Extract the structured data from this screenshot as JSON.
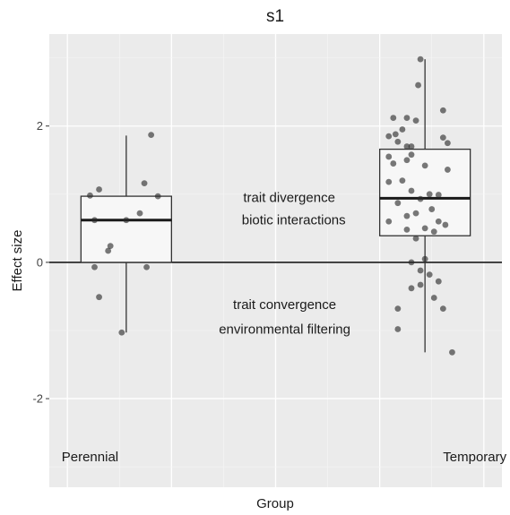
{
  "chart_data": {
    "type": "box",
    "title": "s1",
    "xlabel": "Group",
    "ylabel": "Effect size",
    "ylim": [
      -3.3,
      3.35
    ],
    "yticks": [
      -2,
      0,
      2
    ],
    "ytick_labels": [
      "-2",
      "0",
      "2"
    ],
    "reference_line_y": 0,
    "grid": true,
    "legend": "none",
    "annotations": [
      {
        "text": "trait divergence",
        "x": 0.53,
        "y": 0.95
      },
      {
        "text": "biotic interactions",
        "x": 0.54,
        "y": 0.62
      },
      {
        "text": "trait convergence",
        "x": 0.52,
        "y": -0.62
      },
      {
        "text": "environmental filtering",
        "x": 0.52,
        "y": -0.98
      }
    ],
    "group_labels": [
      {
        "text": "Perennial",
        "x": 0.09,
        "y": -2.85
      },
      {
        "text": "Temporary",
        "x": 0.94,
        "y": -2.85
      }
    ],
    "categories": [
      "Perennial",
      "Temporary"
    ],
    "boxes": [
      {
        "category": "Perennial",
        "center": 0.17,
        "half_width": 0.1,
        "q1": 0.0,
        "median": 0.62,
        "q3": 0.97,
        "whisker_low": -1.03,
        "whisker_high": 1.86
      },
      {
        "category": "Temporary",
        "center": 0.83,
        "half_width": 0.1,
        "q1": 0.39,
        "median": 0.94,
        "q3": 1.66,
        "whisker_low": -1.32,
        "whisker_high": 2.98
      }
    ],
    "points": [
      {
        "x": 0.09,
        "y": 0.98
      },
      {
        "x": 0.11,
        "y": 1.07
      },
      {
        "x": 0.1,
        "y": 0.62
      },
      {
        "x": 0.1,
        "y": -0.07
      },
      {
        "x": 0.11,
        "y": -0.51
      },
      {
        "x": 0.13,
        "y": 0.17
      },
      {
        "x": 0.135,
        "y": 0.24
      },
      {
        "x": 0.17,
        "y": 0.62
      },
      {
        "x": 0.16,
        "y": -1.03
      },
      {
        "x": 0.2,
        "y": 0.72
      },
      {
        "x": 0.21,
        "y": 1.16
      },
      {
        "x": 0.215,
        "y": -0.07
      },
      {
        "x": 0.225,
        "y": 1.87
      },
      {
        "x": 0.24,
        "y": 0.97
      },
      {
        "x": 0.82,
        "y": 2.98
      },
      {
        "x": 0.815,
        "y": 2.6
      },
      {
        "x": 0.87,
        "y": 2.23
      },
      {
        "x": 0.76,
        "y": 2.12
      },
      {
        "x": 0.79,
        "y": 2.12
      },
      {
        "x": 0.81,
        "y": 2.08
      },
      {
        "x": 0.75,
        "y": 1.85
      },
      {
        "x": 0.765,
        "y": 1.88
      },
      {
        "x": 0.78,
        "y": 1.95
      },
      {
        "x": 0.77,
        "y": 1.77
      },
      {
        "x": 0.8,
        "y": 1.7
      },
      {
        "x": 0.79,
        "y": 1.7
      },
      {
        "x": 0.87,
        "y": 1.83
      },
      {
        "x": 0.88,
        "y": 1.75
      },
      {
        "x": 0.75,
        "y": 1.55
      },
      {
        "x": 0.76,
        "y": 1.45
      },
      {
        "x": 0.79,
        "y": 1.5
      },
      {
        "x": 0.8,
        "y": 1.58
      },
      {
        "x": 0.83,
        "y": 1.42
      },
      {
        "x": 0.88,
        "y": 1.36
      },
      {
        "x": 0.75,
        "y": 1.18
      },
      {
        "x": 0.78,
        "y": 1.2
      },
      {
        "x": 0.8,
        "y": 1.05
      },
      {
        "x": 0.84,
        "y": 1.0
      },
      {
        "x": 0.86,
        "y": 0.99
      },
      {
        "x": 0.77,
        "y": 0.87
      },
      {
        "x": 0.82,
        "y": 0.93
      },
      {
        "x": 0.75,
        "y": 0.6
      },
      {
        "x": 0.79,
        "y": 0.68
      },
      {
        "x": 0.81,
        "y": 0.72
      },
      {
        "x": 0.845,
        "y": 0.78
      },
      {
        "x": 0.86,
        "y": 0.6
      },
      {
        "x": 0.875,
        "y": 0.55
      },
      {
        "x": 0.79,
        "y": 0.48
      },
      {
        "x": 0.83,
        "y": 0.5
      },
      {
        "x": 0.85,
        "y": 0.45
      },
      {
        "x": 0.81,
        "y": 0.35
      },
      {
        "x": 0.8,
        "y": 0.0
      },
      {
        "x": 0.83,
        "y": 0.05
      },
      {
        "x": 0.82,
        "y": -0.12
      },
      {
        "x": 0.84,
        "y": -0.18
      },
      {
        "x": 0.82,
        "y": -0.33
      },
      {
        "x": 0.86,
        "y": -0.28
      },
      {
        "x": 0.8,
        "y": -0.38
      },
      {
        "x": 0.77,
        "y": -0.68
      },
      {
        "x": 0.87,
        "y": -0.68
      },
      {
        "x": 0.77,
        "y": -0.98
      },
      {
        "x": 0.85,
        "y": -0.52
      },
      {
        "x": 0.89,
        "y": -1.32
      }
    ]
  }
}
